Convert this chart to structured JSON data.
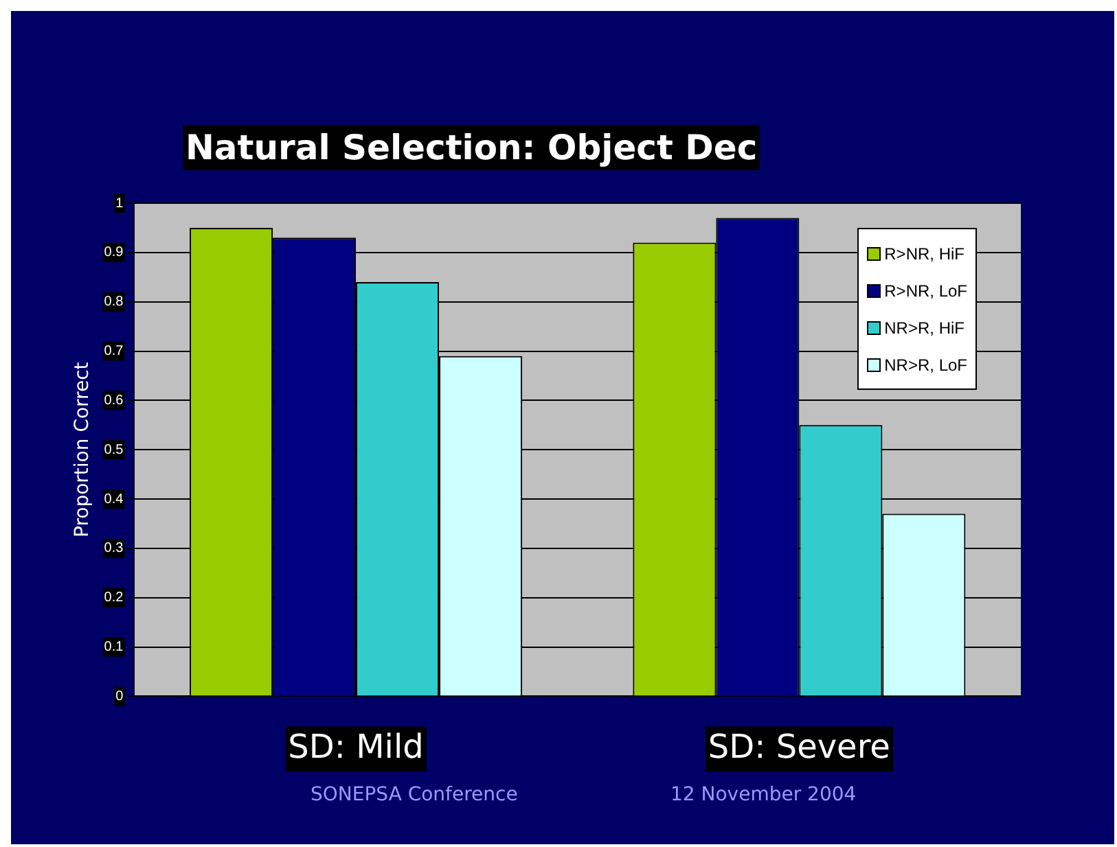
{
  "chart_data": {
    "type": "bar",
    "title": "Natural Selection: Object Dec",
    "ylabel": "Proportion Correct",
    "categories": [
      "SD: Mild",
      "SD: Severe"
    ],
    "series": [
      {
        "name": "R>NR, HiF",
        "color": "#99cc00",
        "values": [
          0.95,
          0.92
        ]
      },
      {
        "name": "R>NR, LoF",
        "color": "#000080",
        "values": [
          0.93,
          0.97
        ]
      },
      {
        "name": "NR>R, HiF",
        "color": "#33cccc",
        "values": [
          0.84,
          0.55
        ]
      },
      {
        "name": "NR>R, LoF",
        "color": "#ccffff",
        "values": [
          0.69,
          0.37
        ]
      }
    ],
    "ylim": [
      0,
      1
    ],
    "yticks": [
      0,
      0.1,
      0.2,
      0.3,
      0.4,
      0.5,
      0.6,
      0.7,
      0.8,
      0.9,
      1
    ],
    "grid": "y",
    "legend": "top right",
    "annotations": [
      "SONEPSA Conference",
      "12 November 2004"
    ]
  }
}
